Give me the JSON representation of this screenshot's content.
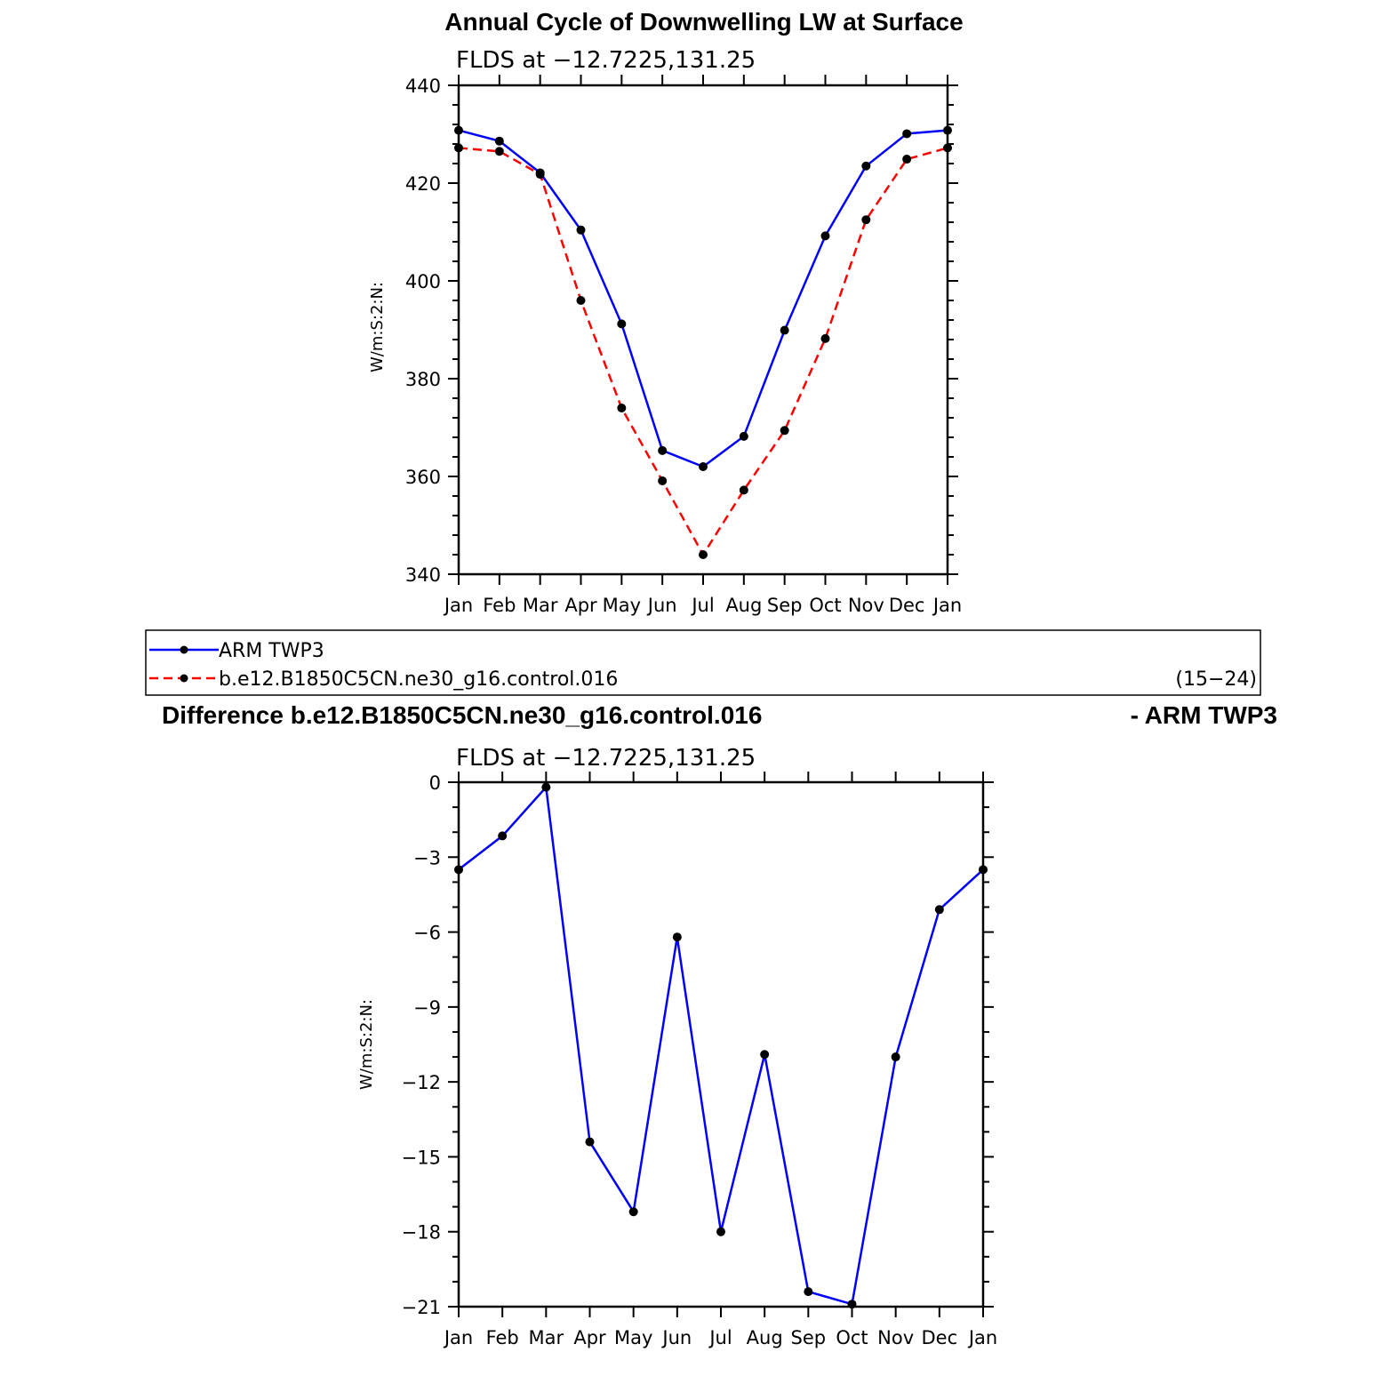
{
  "chart_data": [
    {
      "type": "line",
      "title": "Annual Cycle of Downwelling LW at Surface",
      "subtitle": "FLDS at −12.7225,131.25",
      "xlabel": "",
      "ylabel": "W/m:S:2:N:",
      "categories": [
        "Jan",
        "Feb",
        "Mar",
        "Apr",
        "May",
        "Jun",
        "Jul",
        "Aug",
        "Sep",
        "Oct",
        "Nov",
        "Dec",
        "Jan"
      ],
      "ylim": [
        340,
        440
      ],
      "yticks": [
        340,
        360,
        380,
        400,
        420,
        440
      ],
      "ytick_labels": [
        "340",
        "360",
        "380",
        "400",
        "420",
        "440"
      ],
      "grid": false,
      "series": [
        {
          "name": "ARM TWP3",
          "color": "#0000ff",
          "dashed": false,
          "values": [
            430.8,
            428.6,
            422.1,
            410.4,
            391.2,
            365.3,
            362.0,
            368.2,
            389.9,
            409.2,
            423.5,
            430.1,
            430.8
          ]
        },
        {
          "name": "b.e12.B1850C5CN.ne30_g16.control.016",
          "color": "#ff0000",
          "dashed": true,
          "values": [
            427.2,
            426.5,
            421.8,
            396.0,
            374.0,
            359.1,
            344.0,
            357.2,
            369.4,
            388.2,
            412.5,
            424.9,
            427.2
          ]
        }
      ]
    },
    {
      "type": "line",
      "title": "Difference b.e12.B1850C5CN.ne30_g16.control.016",
      "title_right": "- ARM TWP3",
      "subtitle": "FLDS at −12.7225,131.25",
      "xlabel": "",
      "ylabel": "W/m:S:2:N:",
      "categories": [
        "Jan",
        "Feb",
        "Mar",
        "Apr",
        "May",
        "Jun",
        "Jul",
        "Aug",
        "Sep",
        "Oct",
        "Nov",
        "Dec",
        "Jan"
      ],
      "ylim": [
        -21,
        0
      ],
      "yticks": [
        -21,
        -18,
        -15,
        -12,
        -9,
        -6,
        -3,
        0
      ],
      "ytick_labels": [
        "−21",
        "−18",
        "−15",
        "−12",
        "−9",
        "−6",
        "−3",
        "0"
      ],
      "grid": false,
      "series": [
        {
          "name": "",
          "color": "#0000ff",
          "dashed": false,
          "values": [
            -3.5,
            -2.15,
            -0.2,
            -14.4,
            -17.2,
            -6.2,
            -18.0,
            -10.9,
            -20.4,
            -20.9,
            -11.0,
            -5.1,
            -3.5
          ]
        }
      ]
    }
  ],
  "legend": {
    "entries": [
      {
        "label": "ARM TWP3",
        "color": "#0000ff",
        "dashed": false
      },
      {
        "label": "b.e12.B1850C5CN.ne30_g16.control.016",
        "color": "#ff0000",
        "dashed": true
      }
    ],
    "right_note": "(15−24)"
  }
}
